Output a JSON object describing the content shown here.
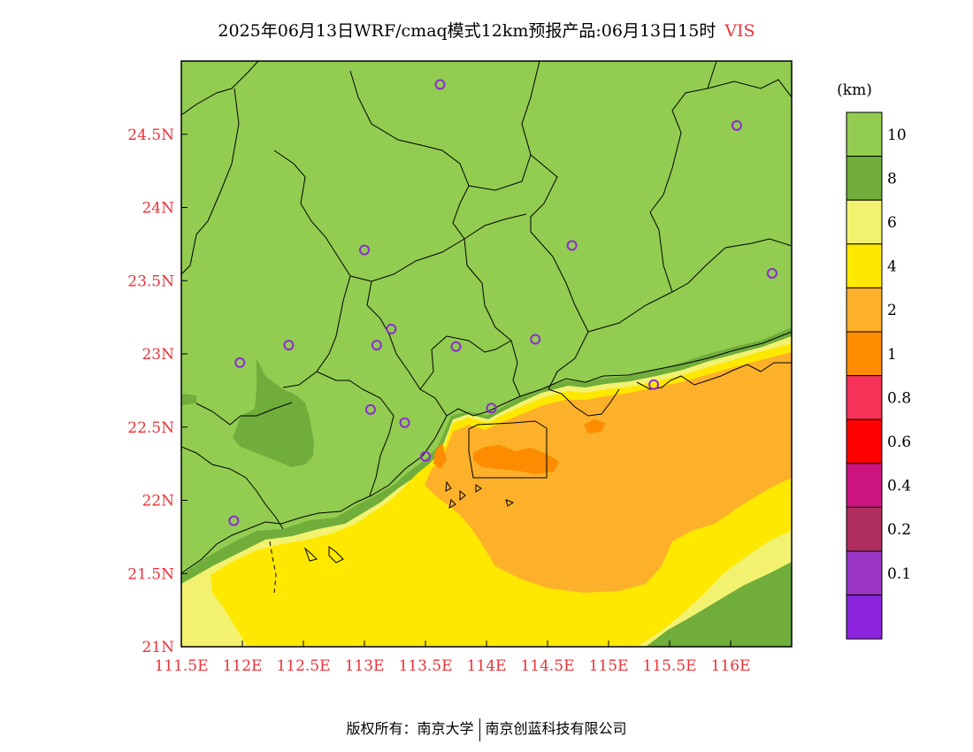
{
  "title": {
    "main": "2025年06月13日WRF/cmaq模式12km预报产品:06月13日15时",
    "variable": "VIS"
  },
  "axes": {
    "x_ticks": [
      "111.5E",
      "112E",
      "112.5E",
      "113E",
      "113.5E",
      "114E",
      "114.5E",
      "115E",
      "115.5E",
      "116E"
    ],
    "y_ticks": [
      "21N",
      "21.5N",
      "22N",
      "22.5N",
      "23N",
      "23.5N",
      "24N",
      "24.5N"
    ]
  },
  "legend": {
    "unit": "(km)",
    "labels": [
      "10",
      "8",
      "6",
      "4",
      "2",
      "1",
      "0.8",
      "0.6",
      "0.4",
      "0.2",
      "0.1"
    ],
    "colors": [
      "#92cc50",
      "#70ad3a",
      "#f2f270",
      "#ffe800",
      "#fdb02a",
      "#fd8c00",
      "#f53257",
      "#ff0000",
      "#cc1480",
      "#ae2d5f",
      "#9a35c6",
      "#8b24dc"
    ]
  },
  "colors": {
    "land_high_vis": "#92cc50",
    "land_8km": "#70ad3a",
    "vis_6km": "#f2f270",
    "vis_4km": "#ffe800",
    "vis_2km": "#fdb02a",
    "vis_1km": "#fd8c00",
    "station_marker": "#8c2cd0",
    "tick_label": "#e8333a"
  },
  "stations": [
    {
      "lon": 113.62,
      "lat": 24.84
    },
    {
      "lon": 116.05,
      "lat": 24.56
    },
    {
      "lon": 113.0,
      "lat": 23.71
    },
    {
      "lon": 114.7,
      "lat": 23.74
    },
    {
      "lon": 116.34,
      "lat": 23.55
    },
    {
      "lon": 112.38,
      "lat": 23.06
    },
    {
      "lon": 113.1,
      "lat": 23.06
    },
    {
      "lon": 113.22,
      "lat": 23.17
    },
    {
      "lon": 113.75,
      "lat": 23.05
    },
    {
      "lon": 114.4,
      "lat": 23.1
    },
    {
      "lon": 111.98,
      "lat": 22.94
    },
    {
      "lon": 113.05,
      "lat": 22.62
    },
    {
      "lon": 113.33,
      "lat": 22.53
    },
    {
      "lon": 114.04,
      "lat": 22.63
    },
    {
      "lon": 113.5,
      "lat": 22.3
    },
    {
      "lon": 111.93,
      "lat": 21.86
    },
    {
      "lon": 115.37,
      "lat": 22.79
    }
  ],
  "footer": {
    "left": "版权所有：南京大学",
    "right": "南京创蓝科技有限公司"
  }
}
